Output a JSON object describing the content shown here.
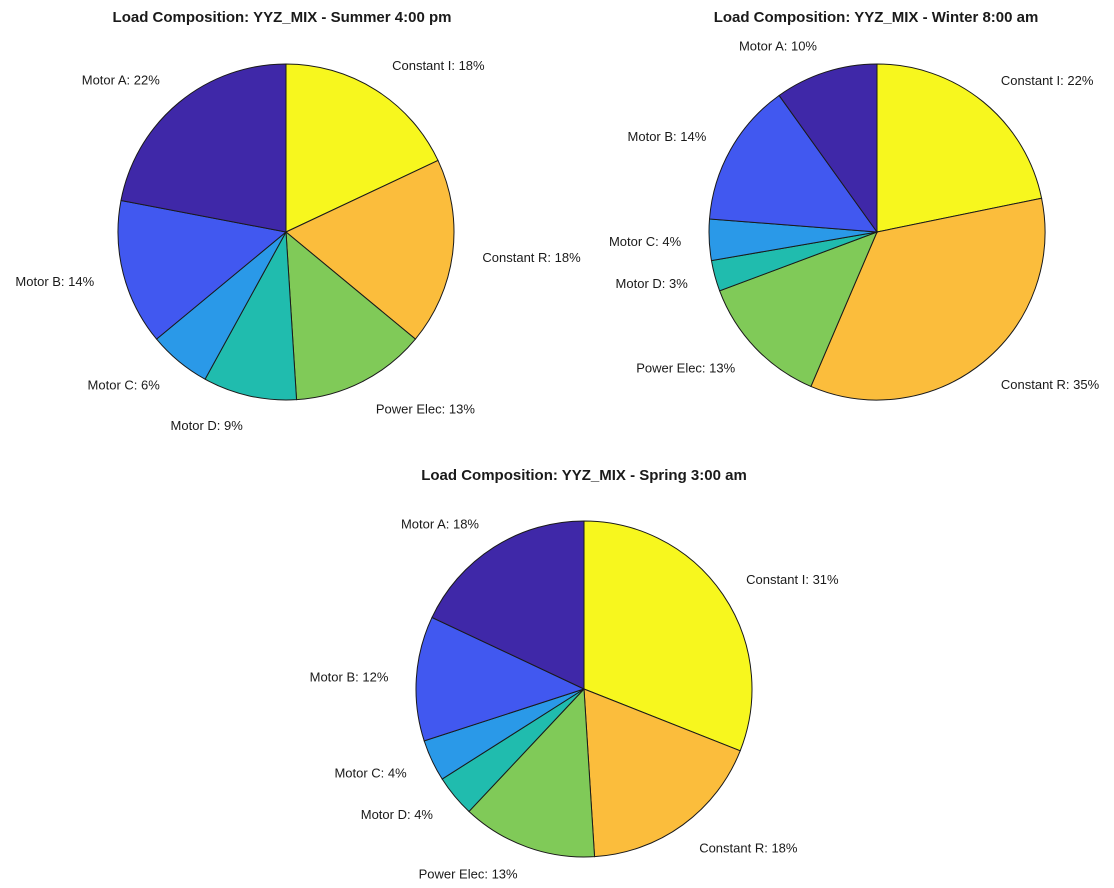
{
  "chart_data": [
    {
      "type": "pie",
      "title": "Load Composition: YYZ_MIX - Summer 4:00 pm",
      "slices": [
        {
          "name": "Constant I",
          "value": 18,
          "label": "Constant I: 18%",
          "color": "#f7f71e"
        },
        {
          "name": "Constant R",
          "value": 18,
          "label": "Constant R: 18%",
          "color": "#fbbd3c"
        },
        {
          "name": "Power Elec",
          "value": 13,
          "label": "Power Elec: 13%",
          "color": "#80ca58"
        },
        {
          "name": "Motor D",
          "value": 9,
          "label": "Motor D: 9%",
          "color": "#20bcae"
        },
        {
          "name": "Motor C",
          "value": 6,
          "label": "Motor C: 6%",
          "color": "#2a99e8"
        },
        {
          "name": "Motor B",
          "value": 14,
          "label": "Motor B: 14%",
          "color": "#4158f0"
        },
        {
          "name": "Motor A",
          "value": 22,
          "label": "Motor A: 22%",
          "color": "#3f28a8"
        }
      ]
    },
    {
      "type": "pie",
      "title": "Load Composition: YYZ_MIX - Winter 8:00 am",
      "slices": [
        {
          "name": "Constant I",
          "value": 22,
          "label": "Constant I: 22%",
          "color": "#f7f71e"
        },
        {
          "name": "Constant R",
          "value": 35,
          "label": "Constant R: 35%",
          "color": "#fbbd3c"
        },
        {
          "name": "Power Elec",
          "value": 13,
          "label": "Power Elec: 13%",
          "color": "#80ca58"
        },
        {
          "name": "Motor D",
          "value": 3,
          "label": "Motor D: 3%",
          "color": "#20bcae"
        },
        {
          "name": "Motor C",
          "value": 4,
          "label": "Motor C: 4%",
          "color": "#2a99e8"
        },
        {
          "name": "Motor B",
          "value": 14,
          "label": "Motor B: 14%",
          "color": "#4158f0"
        },
        {
          "name": "Motor A",
          "value": 10,
          "label": "Motor A: 10%",
          "color": "#3f28a8"
        }
      ]
    },
    {
      "type": "pie",
      "title": "Load Composition: YYZ_MIX - Spring 3:00 am",
      "slices": [
        {
          "name": "Constant I",
          "value": 31,
          "label": "Constant I: 31%",
          "color": "#f7f71e"
        },
        {
          "name": "Constant R",
          "value": 18,
          "label": "Constant R: 18%",
          "color": "#fbbd3c"
        },
        {
          "name": "Power Elec",
          "value": 13,
          "label": "Power Elec: 13%",
          "color": "#80ca58"
        },
        {
          "name": "Motor D",
          "value": 4,
          "label": "Motor D: 4%",
          "color": "#20bcae"
        },
        {
          "name": "Motor C",
          "value": 4,
          "label": "Motor C: 4%",
          "color": "#2a99e8"
        },
        {
          "name": "Motor B",
          "value": 12,
          "label": "Motor B: 12%",
          "color": "#4158f0"
        },
        {
          "name": "Motor A",
          "value": 18,
          "label": "Motor A: 18%",
          "color": "#3f28a8"
        }
      ]
    }
  ]
}
